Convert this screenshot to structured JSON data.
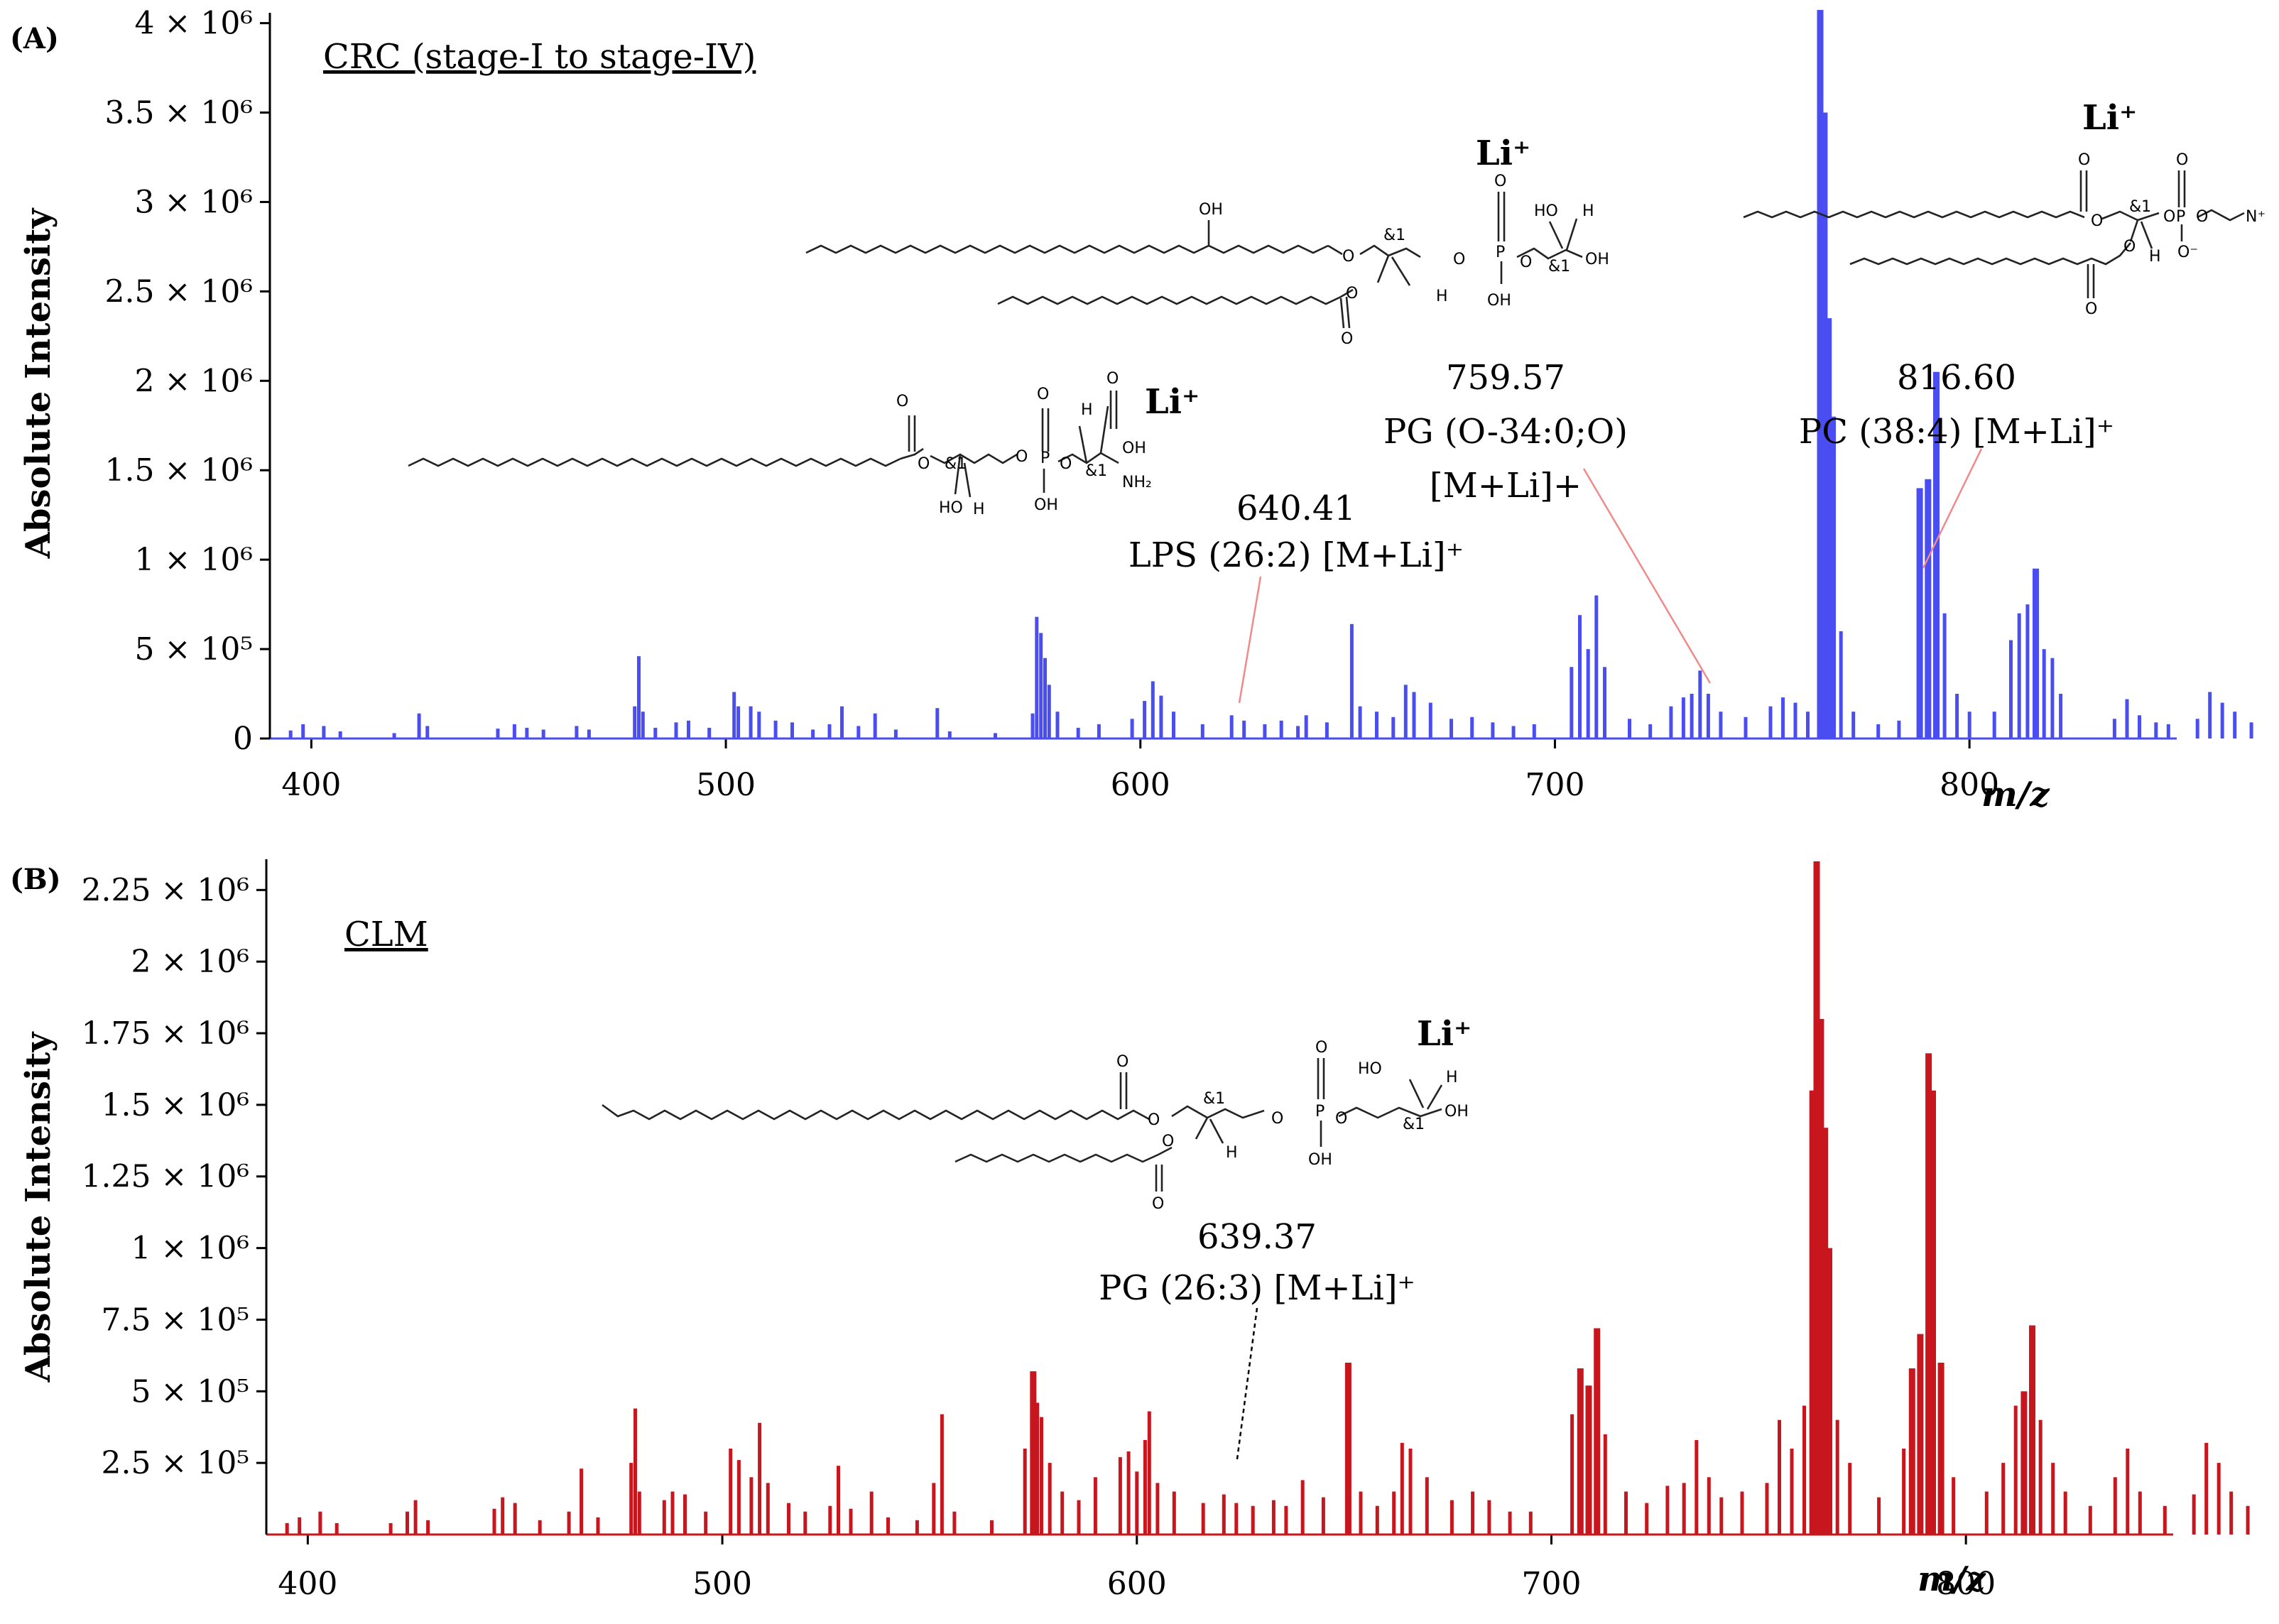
{
  "colors": {
    "panel_a": "#4a4ef2",
    "panel_b": "#c8161e",
    "leader_a": "#f08a8a",
    "leader_b": "#000000",
    "axis": "#000000"
  },
  "chart_data": [
    {
      "type": "bar",
      "panel_label": "(A)",
      "title": "CRC (stage-I to stage-IV)",
      "xlabel": "m/z",
      "ylabel": "Absolute Intensity",
      "xlim": [
        390,
        850
      ],
      "ylim": [
        0,
        4050000
      ],
      "x_ticks": [
        400,
        500,
        600,
        700,
        800
      ],
      "y_ticks": [
        {
          "value": 0,
          "label": "0"
        },
        {
          "value": 500000,
          "label": "5 × 10⁵"
        },
        {
          "value": 1000000,
          "label": "1 × 10⁶"
        },
        {
          "value": 1500000,
          "label": "1.5 × 10⁶"
        },
        {
          "value": 2000000,
          "label": "2 × 10⁶"
        },
        {
          "value": 2500000,
          "label": "2.5 × 10⁶"
        },
        {
          "value": 3000000,
          "label": "3 × 10⁶"
        },
        {
          "value": 3500000,
          "label": "3.5 × 10⁶"
        },
        {
          "value": 4000000,
          "label": "4 × 10⁶"
        }
      ],
      "peaks": [
        [
          395,
          45000
        ],
        [
          398,
          80000
        ],
        [
          403,
          70000
        ],
        [
          407,
          40000
        ],
        [
          420,
          30000
        ],
        [
          426,
          140000
        ],
        [
          428,
          70000
        ],
        [
          445,
          55000
        ],
        [
          449,
          80000
        ],
        [
          452,
          60000
        ],
        [
          456,
          50000
        ],
        [
          464,
          70000
        ],
        [
          467,
          50000
        ],
        [
          478,
          180000
        ],
        [
          479,
          460000
        ],
        [
          480,
          150000
        ],
        [
          483,
          60000
        ],
        [
          488,
          90000
        ],
        [
          491,
          100000
        ],
        [
          496,
          60000
        ],
        [
          502,
          260000
        ],
        [
          503,
          180000
        ],
        [
          506,
          180000
        ],
        [
          508,
          150000
        ],
        [
          512,
          100000
        ],
        [
          516,
          90000
        ],
        [
          521,
          50000
        ],
        [
          525,
          80000
        ],
        [
          528,
          180000
        ],
        [
          532,
          70000
        ],
        [
          536,
          140000
        ],
        [
          541,
          50000
        ],
        [
          551,
          170000
        ],
        [
          554,
          40000
        ],
        [
          565,
          30000
        ],
        [
          574,
          140000
        ],
        [
          575,
          680000
        ],
        [
          576,
          590000
        ],
        [
          577,
          450000
        ],
        [
          578,
          300000
        ],
        [
          580,
          150000
        ],
        [
          585,
          60000
        ],
        [
          590,
          80000
        ],
        [
          598,
          110000
        ],
        [
          601,
          210000
        ],
        [
          603,
          320000
        ],
        [
          605,
          240000
        ],
        [
          608,
          150000
        ],
        [
          615,
          80000
        ],
        [
          622,
          130000
        ],
        [
          625,
          100000
        ],
        [
          630,
          80000
        ],
        [
          634,
          100000
        ],
        [
          638,
          70000
        ],
        [
          640,
          130000
        ],
        [
          645,
          90000
        ],
        [
          651,
          640000
        ],
        [
          653,
          180000
        ],
        [
          657,
          150000
        ],
        [
          661,
          120000
        ],
        [
          664,
          300000
        ],
        [
          666,
          260000
        ],
        [
          670,
          200000
        ],
        [
          675,
          110000
        ],
        [
          680,
          120000
        ],
        [
          685,
          90000
        ],
        [
          690,
          70000
        ],
        [
          695,
          80000
        ],
        [
          704,
          400000
        ],
        [
          706,
          690000
        ],
        [
          708,
          500000
        ],
        [
          710,
          800000
        ],
        [
          712,
          400000
        ],
        [
          718,
          110000
        ],
        [
          723,
          80000
        ],
        [
          728,
          180000
        ],
        [
          731,
          230000
        ],
        [
          733,
          250000
        ],
        [
          735,
          380000
        ],
        [
          737,
          250000
        ],
        [
          740,
          150000
        ],
        [
          746,
          120000
        ],
        [
          752,
          180000
        ],
        [
          755,
          230000
        ],
        [
          758,
          200000
        ],
        [
          761,
          150000
        ],
        [
          764,
          4100000
        ],
        [
          765,
          3500000
        ],
        [
          766,
          2350000
        ],
        [
          767,
          1800000
        ],
        [
          769,
          600000
        ],
        [
          772,
          150000
        ],
        [
          778,
          80000
        ],
        [
          783,
          100000
        ],
        [
          788,
          1400000
        ],
        [
          790,
          1450000
        ],
        [
          792,
          2050000
        ],
        [
          794,
          700000
        ],
        [
          797,
          250000
        ],
        [
          800,
          150000
        ],
        [
          806,
          150000
        ],
        [
          810,
          550000
        ],
        [
          812,
          700000
        ],
        [
          814,
          750000
        ],
        [
          816,
          950000
        ],
        [
          818,
          500000
        ],
        [
          820,
          450000
        ],
        [
          822,
          250000
        ],
        [
          835,
          110000
        ],
        [
          838,
          220000
        ],
        [
          841,
          130000
        ],
        [
          845,
          90000
        ],
        [
          848,
          80000
        ],
        [
          855,
          110000
        ],
        [
          858,
          260000
        ],
        [
          861,
          200000
        ],
        [
          864,
          150000
        ],
        [
          868,
          90000
        ]
      ],
      "annotations": [
        {
          "text_lines": [
            "640.41",
            "LPS (26:2) [M+Li]⁺"
          ],
          "mz": 640.41
        },
        {
          "text_lines": [
            "759.57",
            "PG (O-34:0;O)",
            "[M+Li]+"
          ],
          "mz": 759.57
        },
        {
          "text_lines": [
            "816.60",
            "PC (38:4) [M+Li]⁺"
          ],
          "mz": 816.6
        }
      ]
    },
    {
      "type": "bar",
      "panel_label": "(B)",
      "title": "CLM",
      "xlabel": "m/z",
      "ylabel": "Absolute Intensity",
      "xlim": [
        390,
        850
      ],
      "ylim": [
        0,
        2350000
      ],
      "x_ticks": [
        400,
        500,
        600,
        700,
        800
      ],
      "y_ticks": [
        {
          "value": 250000,
          "label": "2.5 × 10⁵"
        },
        {
          "value": 500000,
          "label": "5 × 10⁵"
        },
        {
          "value": 750000,
          "label": "7.5 × 10⁵"
        },
        {
          "value": 1000000,
          "label": "1 × 10⁶"
        },
        {
          "value": 1250000,
          "label": "1.25 × 10⁶"
        },
        {
          "value": 1500000,
          "label": "1.5 × 10⁶"
        },
        {
          "value": 1750000,
          "label": "1.75 × 10⁶"
        },
        {
          "value": 2000000,
          "label": "2 × 10⁶"
        },
        {
          "value": 2250000,
          "label": "2.25 × 10⁶"
        }
      ],
      "peaks": [
        [
          395,
          40000
        ],
        [
          398,
          60000
        ],
        [
          403,
          80000
        ],
        [
          407,
          40000
        ],
        [
          420,
          40000
        ],
        [
          424,
          80000
        ],
        [
          426,
          120000
        ],
        [
          429,
          50000
        ],
        [
          445,
          90000
        ],
        [
          447,
          130000
        ],
        [
          450,
          110000
        ],
        [
          456,
          50000
        ],
        [
          463,
          80000
        ],
        [
          466,
          230000
        ],
        [
          470,
          60000
        ],
        [
          478,
          250000
        ],
        [
          479,
          440000
        ],
        [
          480,
          150000
        ],
        [
          486,
          120000
        ],
        [
          488,
          150000
        ],
        [
          491,
          140000
        ],
        [
          496,
          80000
        ],
        [
          502,
          300000
        ],
        [
          504,
          260000
        ],
        [
          507,
          200000
        ],
        [
          509,
          390000
        ],
        [
          511,
          180000
        ],
        [
          516,
          110000
        ],
        [
          520,
          80000
        ],
        [
          526,
          100000
        ],
        [
          528,
          240000
        ],
        [
          531,
          90000
        ],
        [
          536,
          150000
        ],
        [
          540,
          60000
        ],
        [
          547,
          50000
        ],
        [
          551,
          180000
        ],
        [
          553,
          420000
        ],
        [
          556,
          80000
        ],
        [
          565,
          50000
        ],
        [
          573,
          300000
        ],
        [
          575,
          570000
        ],
        [
          576,
          460000
        ],
        [
          577,
          410000
        ],
        [
          579,
          250000
        ],
        [
          582,
          150000
        ],
        [
          586,
          120000
        ],
        [
          590,
          200000
        ],
        [
          596,
          270000
        ],
        [
          598,
          290000
        ],
        [
          600,
          220000
        ],
        [
          602,
          330000
        ],
        [
          603,
          430000
        ],
        [
          605,
          180000
        ],
        [
          609,
          150000
        ],
        [
          616,
          110000
        ],
        [
          621,
          140000
        ],
        [
          624,
          110000
        ],
        [
          628,
          100000
        ],
        [
          633,
          120000
        ],
        [
          636,
          100000
        ],
        [
          640,
          190000
        ],
        [
          645,
          130000
        ],
        [
          651,
          600000
        ],
        [
          654,
          150000
        ],
        [
          658,
          100000
        ],
        [
          662,
          150000
        ],
        [
          664,
          320000
        ],
        [
          666,
          300000
        ],
        [
          670,
          200000
        ],
        [
          676,
          120000
        ],
        [
          681,
          150000
        ],
        [
          685,
          120000
        ],
        [
          690,
          80000
        ],
        [
          695,
          80000
        ],
        [
          705,
          420000
        ],
        [
          707,
          580000
        ],
        [
          709,
          520000
        ],
        [
          711,
          720000
        ],
        [
          713,
          350000
        ],
        [
          718,
          150000
        ],
        [
          723,
          110000
        ],
        [
          728,
          170000
        ],
        [
          732,
          180000
        ],
        [
          735,
          330000
        ],
        [
          738,
          200000
        ],
        [
          741,
          130000
        ],
        [
          746,
          150000
        ],
        [
          752,
          180000
        ],
        [
          755,
          400000
        ],
        [
          758,
          300000
        ],
        [
          761,
          450000
        ],
        [
          763,
          1550000
        ],
        [
          764,
          2350000
        ],
        [
          765,
          1800000
        ],
        [
          766,
          1420000
        ],
        [
          767,
          1000000
        ],
        [
          769,
          400000
        ],
        [
          772,
          250000
        ],
        [
          779,
          130000
        ],
        [
          785,
          300000
        ],
        [
          787,
          580000
        ],
        [
          789,
          700000
        ],
        [
          791,
          1680000
        ],
        [
          792,
          1550000
        ],
        [
          794,
          600000
        ],
        [
          797,
          200000
        ],
        [
          805,
          150000
        ],
        [
          809,
          250000
        ],
        [
          812,
          450000
        ],
        [
          814,
          500000
        ],
        [
          816,
          730000
        ],
        [
          818,
          400000
        ],
        [
          821,
          250000
        ],
        [
          824,
          150000
        ],
        [
          830,
          100000
        ],
        [
          836,
          200000
        ],
        [
          839,
          300000
        ],
        [
          842,
          150000
        ],
        [
          848,
          100000
        ],
        [
          855,
          140000
        ],
        [
          858,
          320000
        ],
        [
          861,
          250000
        ],
        [
          864,
          150000
        ],
        [
          868,
          100000
        ]
      ],
      "annotations": [
        {
          "text_lines": [
            "639.37",
            "PG (26:3) [M+Li]⁺"
          ],
          "mz": 639.37
        }
      ]
    }
  ],
  "structures": {
    "li_label": "Li⁺",
    "atoms": {
      "oh": "OH",
      "ho": "HO",
      "h": "H",
      "o": "O",
      "p": "P",
      "nh2": "NH₂",
      "n": "N⁺",
      "o_minus": "O⁻",
      "stereo": "&1"
    }
  }
}
